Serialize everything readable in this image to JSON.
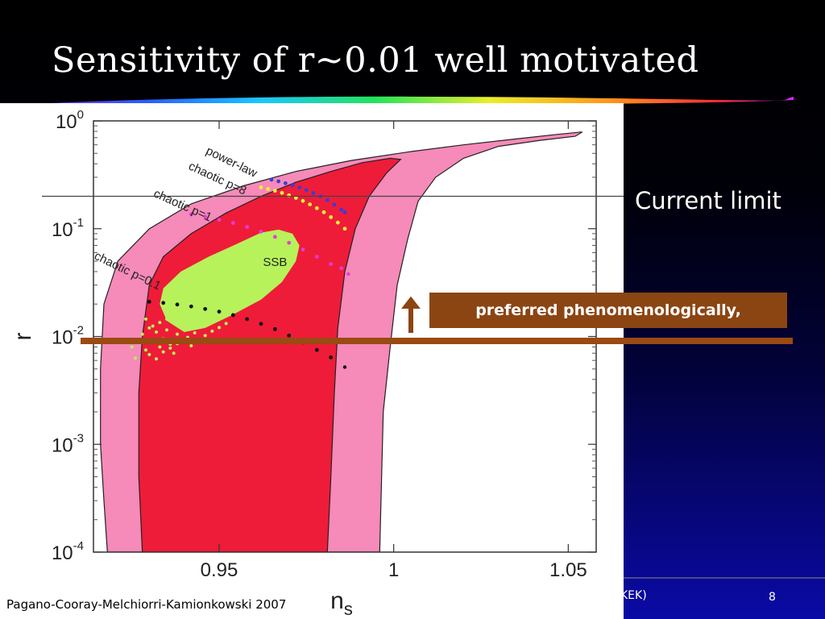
{
  "slide": {
    "title": "Sensitivity of r~0.01 well motivated",
    "current_limit_label": "Current limit",
    "preferred_label": "preferred phenomenologically,",
    "citation": "Pagano-Cooray-Melchiorri-Kamionkowski 2007",
    "footer_text": "KEK)",
    "page_number": "8",
    "colors": {
      "arrow": "#8b4513",
      "box": "#8b4513",
      "threshold_line": "#9a4a12"
    }
  },
  "chart_data": {
    "type": "scatter",
    "xlabel": "n",
    "xlabel_sub": "s",
    "ylabel": "r",
    "xlim": [
      0.914,
      1.058
    ],
    "ylim": [
      0.0001,
      1
    ],
    "y_scale": "log",
    "x_ticks": [
      {
        "v": 0.95,
        "label": "0.95"
      },
      {
        "v": 1.0,
        "label": "1"
      },
      {
        "v": 1.05,
        "label": "1.05"
      }
    ],
    "y_ticks": [
      {
        "v": 1,
        "base": "10",
        "exp": "0"
      },
      {
        "v": 0.1,
        "base": "10",
        "exp": "-1"
      },
      {
        "v": 0.01,
        "base": "10",
        "exp": "-2"
      },
      {
        "v": 0.001,
        "base": "10",
        "exp": "-3"
      },
      {
        "v": 0.0001,
        "base": "10",
        "exp": "-4"
      }
    ],
    "current_limit_r": 0.2,
    "threshold_r": 0.01,
    "contour_95_color": "#f68ab9",
    "contour_68_color": "#ee1c39",
    "contour_95": [
      [
        0.918,
        0.0001
      ],
      [
        0.917,
        0.0003
      ],
      [
        0.916,
        0.001
      ],
      [
        0.916,
        0.005
      ],
      [
        0.917,
        0.02
      ],
      [
        0.921,
        0.05
      ],
      [
        0.93,
        0.1
      ],
      [
        0.942,
        0.17
      ],
      [
        0.957,
        0.25
      ],
      [
        0.972,
        0.34
      ],
      [
        0.988,
        0.43
      ],
      [
        1.005,
        0.52
      ],
      [
        1.02,
        0.6
      ],
      [
        1.035,
        0.68
      ],
      [
        1.047,
        0.75
      ],
      [
        1.054,
        0.79
      ],
      [
        1.052,
        0.72
      ],
      [
        1.042,
        0.66
      ],
      [
        1.03,
        0.58
      ],
      [
        1.02,
        0.45
      ],
      [
        1.012,
        0.3
      ],
      [
        1.007,
        0.18
      ],
      [
        1.004,
        0.08
      ],
      [
        1.001,
        0.03
      ],
      [
        0.999,
        0.008
      ],
      [
        0.997,
        0.002
      ],
      [
        0.996,
        0.0001
      ]
    ],
    "contour_68": [
      [
        0.928,
        0.0001
      ],
      [
        0.927,
        0.0005
      ],
      [
        0.927,
        0.003
      ],
      [
        0.928,
        0.01
      ],
      [
        0.93,
        0.03
      ],
      [
        0.934,
        0.055
      ],
      [
        0.942,
        0.09
      ],
      [
        0.952,
        0.14
      ],
      [
        0.962,
        0.2
      ],
      [
        0.972,
        0.27
      ],
      [
        0.982,
        0.34
      ],
      [
        0.991,
        0.41
      ],
      [
        0.999,
        0.45
      ],
      [
        1.002,
        0.44
      ],
      [
        0.998,
        0.33
      ],
      [
        0.993,
        0.2
      ],
      [
        0.989,
        0.1
      ],
      [
        0.986,
        0.04
      ],
      [
        0.984,
        0.012
      ],
      [
        0.983,
        0.003
      ],
      [
        0.982,
        0.0005
      ],
      [
        0.981,
        0.0001
      ]
    ],
    "ssb_region_color": "#b7f25b",
    "ssb_region": [
      [
        0.934,
        0.028
      ],
      [
        0.939,
        0.04
      ],
      [
        0.947,
        0.055
      ],
      [
        0.955,
        0.072
      ],
      [
        0.962,
        0.092
      ],
      [
        0.967,
        0.098
      ],
      [
        0.971,
        0.09
      ],
      [
        0.973,
        0.07
      ],
      [
        0.972,
        0.05
      ],
      [
        0.968,
        0.032
      ],
      [
        0.962,
        0.022
      ],
      [
        0.954,
        0.016
      ],
      [
        0.946,
        0.012
      ],
      [
        0.94,
        0.011
      ],
      [
        0.935,
        0.014
      ],
      [
        0.933,
        0.02
      ]
    ],
    "ssb_label": "SSB",
    "ssb_label_at": [
      0.966,
      0.045
    ],
    "ssb_scatter": [
      [
        0.93,
        0.012
      ],
      [
        0.931,
        0.009
      ],
      [
        0.932,
        0.011
      ],
      [
        0.933,
        0.008
      ],
      [
        0.934,
        0.0095
      ],
      [
        0.935,
        0.0115
      ],
      [
        0.936,
        0.0085
      ],
      [
        0.937,
        0.007
      ],
      [
        0.938,
        0.0105
      ],
      [
        0.939,
        0.009
      ],
      [
        0.94,
        0.0118
      ],
      [
        0.941,
        0.0098
      ],
      [
        0.942,
        0.0082
      ],
      [
        0.943,
        0.0108
      ],
      [
        0.944,
        0.0092
      ],
      [
        0.945,
        0.0125
      ],
      [
        0.946,
        0.0102
      ],
      [
        0.947,
        0.0135
      ],
      [
        0.948,
        0.0112
      ],
      [
        0.949,
        0.0142
      ],
      [
        0.95,
        0.0121
      ],
      [
        0.951,
        0.0152
      ],
      [
        0.952,
        0.0132
      ],
      [
        0.929,
        0.0075
      ],
      [
        0.93,
        0.0068
      ],
      [
        0.932,
        0.0062
      ],
      [
        0.934,
        0.0072
      ],
      [
        0.936,
        0.0078
      ],
      [
        0.938,
        0.0086
      ],
      [
        0.94,
        0.0092
      ],
      [
        0.927,
        0.0088
      ],
      [
        0.928,
        0.0105
      ],
      [
        0.925,
        0.008
      ],
      [
        0.926,
        0.0063
      ],
      [
        0.931,
        0.0125
      ],
      [
        0.933,
        0.0135
      ],
      [
        0.935,
        0.0145
      ],
      [
        0.937,
        0.0155
      ],
      [
        0.939,
        0.0165
      ],
      [
        0.941,
        0.0175
      ],
      [
        0.943,
        0.0185
      ],
      [
        0.945,
        0.0195
      ],
      [
        0.947,
        0.0205
      ],
      [
        0.949,
        0.0215
      ],
      [
        0.951,
        0.0225
      ],
      [
        0.953,
        0.0235
      ],
      [
        0.929,
        0.0145
      ],
      [
        0.942,
        0.0148
      ]
    ],
    "series": [
      {
        "name": "power-law",
        "color": "#3b3bd9",
        "x": [
          0.965,
          0.967,
          0.969,
          0.971,
          0.973,
          0.975,
          0.977,
          0.979,
          0.981,
          0.983,
          0.985,
          0.986
        ],
        "y": [
          0.285,
          0.275,
          0.264,
          0.253,
          0.241,
          0.228,
          0.214,
          0.199,
          0.184,
          0.167,
          0.15,
          0.142
        ]
      },
      {
        "name": "chaotic p=8",
        "color": "#f3ee3a",
        "x": [
          0.962,
          0.964,
          0.966,
          0.968,
          0.97,
          0.972,
          0.974,
          0.976,
          0.978,
          0.98,
          0.982,
          0.984,
          0.986
        ],
        "y": [
          0.242,
          0.234,
          0.225,
          0.215,
          0.204,
          0.193,
          0.181,
          0.168,
          0.155,
          0.142,
          0.128,
          0.114,
          0.1
        ]
      },
      {
        "name": "chaotic p=1",
        "color": "#e83ad8",
        "x": [
          0.942,
          0.946,
          0.95,
          0.954,
          0.958,
          0.962,
          0.966,
          0.97,
          0.974,
          0.978,
          0.982,
          0.985
        ],
        "y": [
          0.136,
          0.129,
          0.121,
          0.113,
          0.104,
          0.094,
          0.084,
          0.074,
          0.064,
          0.055,
          0.047,
          0.043
        ]
      },
      {
        "name": "chaotic p=0.1",
        "color": "#111111",
        "x": [
          0.93,
          0.934,
          0.938,
          0.942,
          0.946,
          0.95,
          0.954,
          0.958,
          0.962,
          0.966,
          0.97,
          0.974,
          0.978,
          0.982
        ],
        "y": [
          0.021,
          0.0205,
          0.0198,
          0.019,
          0.018,
          0.017,
          0.0158,
          0.0145,
          0.0131,
          0.0117,
          0.0102,
          0.0088,
          0.0075,
          0.0064
        ]
      }
    ],
    "outliers": [
      {
        "x": 0.987,
        "y": 0.038,
        "color": "#e83ad8"
      },
      {
        "x": 0.986,
        "y": 0.0052,
        "color": "#111111"
      }
    ],
    "labels": [
      {
        "text": "power-law",
        "x": 0.946,
        "y": 0.5,
        "angle": 26
      },
      {
        "text": "chaotic p=8",
        "x": 0.941,
        "y": 0.36,
        "angle": 25
      },
      {
        "text": "chaotic p=1",
        "x": 0.931,
        "y": 0.2,
        "angle": 24
      },
      {
        "text": "chaotic p=0.1",
        "x": 0.914,
        "y": 0.053,
        "angle": 26
      }
    ]
  }
}
